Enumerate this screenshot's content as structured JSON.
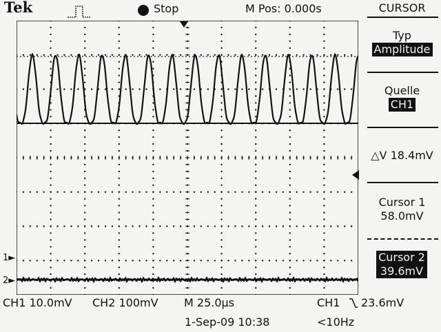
{
  "header": {
    "brand": "Tek",
    "trigger_icon": "trigger-pulse-icon",
    "run_state": "Stop",
    "m_pos": "M Pos: 0.000s"
  },
  "menu": {
    "title": "CURSOR",
    "type_label": "Typ",
    "type_value": "Amplitude",
    "source_label": "Quelle",
    "source_value": "CH1",
    "delta": "△V 18.4mV",
    "cursor1_label": "Cursor 1",
    "cursor1_value": "58.0mV",
    "cursor2_label": "Cursor 2",
    "cursor2_value": "39.6mV"
  },
  "markers": {
    "trigger_pos_icon": "trigger-position-arrow-icon",
    "trigger_level_icon": "trigger-level-arrow-icon",
    "ch1_ground": "1",
    "ch2_ground": "2"
  },
  "footer": {
    "ch1_scale": "CH1  10.0mV",
    "ch2_scale": "CH2  100mV",
    "timebase": "M 25.0µs",
    "trigger_source": "CH1",
    "trigger_level": "23.6mV",
    "slope_icon": "falling-slope-icon",
    "date_time": "1-Sep-09 10:38",
    "frequency": "<10Hz"
  },
  "colors": {
    "background": "#f4f4f2",
    "trace": "#111111"
  }
}
